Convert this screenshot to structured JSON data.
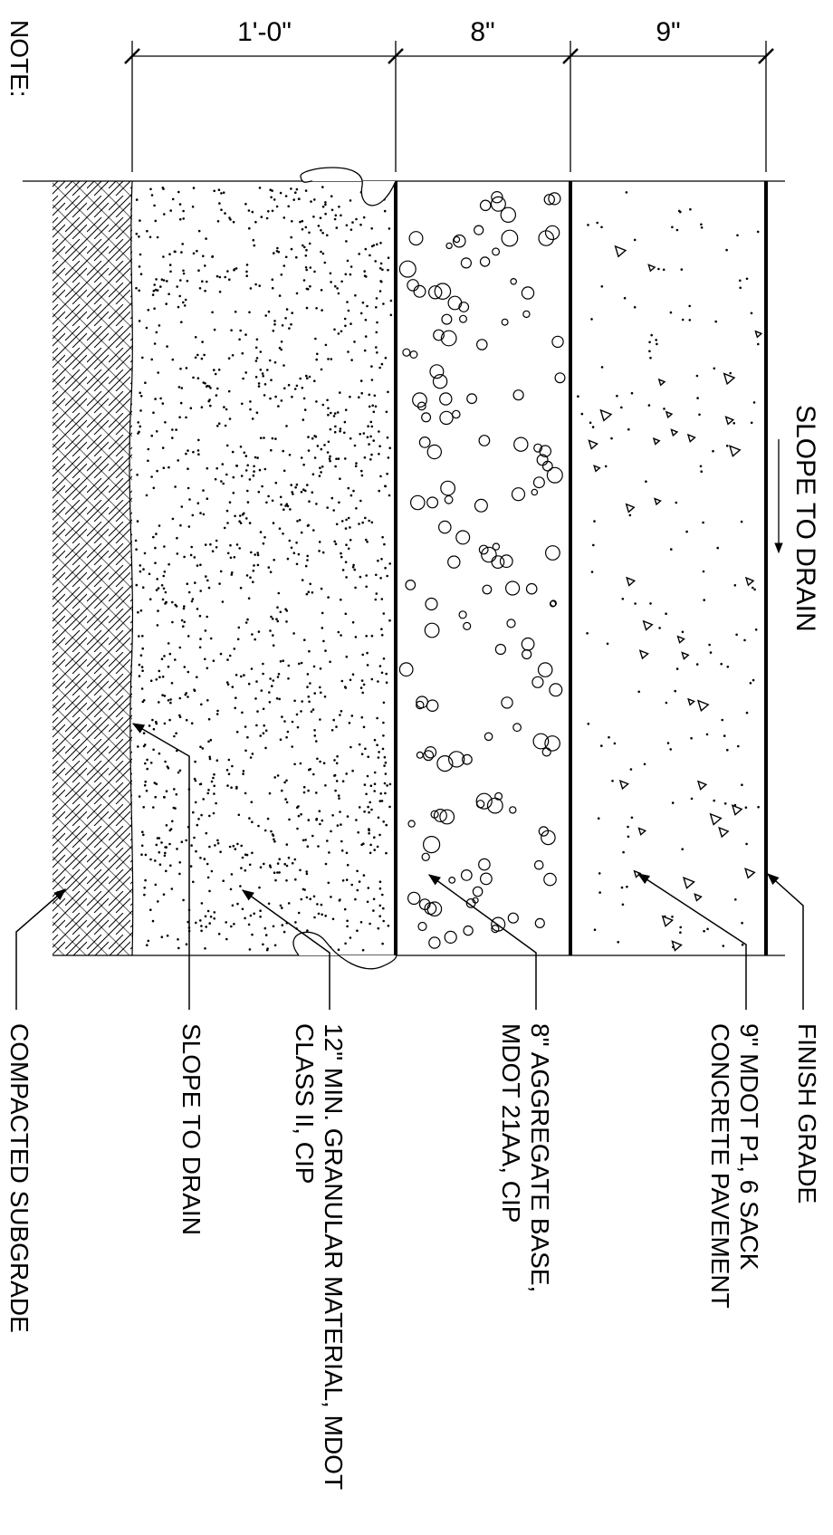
{
  "note_label": "NOTE:",
  "dimensions": {
    "subbase": "1'-0\"",
    "base": "8\"",
    "pavement": "9\""
  },
  "slope_to_drain_top": "SLOPE TO DRAIN",
  "callouts": {
    "finish_grade": [
      "FINISH GRADE"
    ],
    "pavement": [
      "9\" MDOT P1, 6 SACK",
      "CONCRETE PAVEMENT"
    ],
    "aggregate_base": [
      "8\" AGGREGATE BASE,",
      "MDOT 21AA, CIP"
    ],
    "granular": [
      "12\" MIN. GRANULAR MATERIAL, MDOT",
      "CLASS II, CIP"
    ],
    "slope_to_drain": [
      "SLOPE TO DRAIN"
    ],
    "subgrade": [
      "COMPACTED SUBGRADE"
    ]
  },
  "layers": [
    "compacted-subgrade",
    "granular-material",
    "aggregate-base",
    "concrete-pavement"
  ]
}
